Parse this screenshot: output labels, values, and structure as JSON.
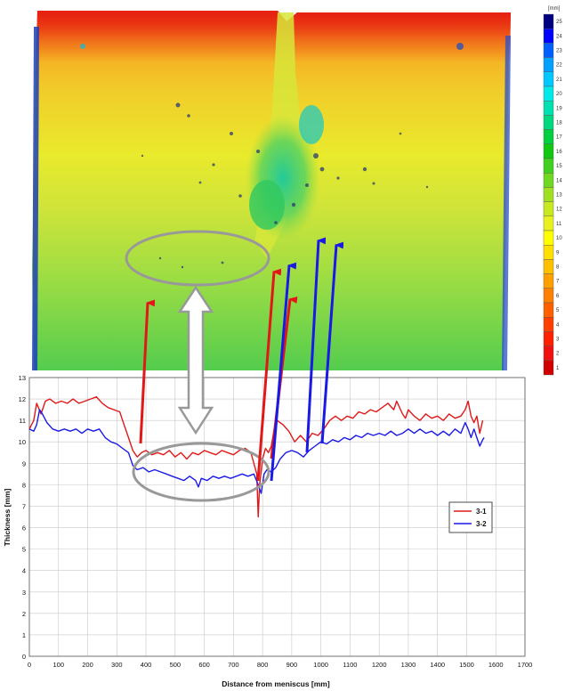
{
  "figure": {
    "thickness_map": {
      "colorbar_unit": "[mm]",
      "colorbar_ticks": [
        "25",
        "24",
        "23",
        "22",
        "21",
        "20",
        "19",
        "18",
        "17",
        "16",
        "15",
        "14",
        "13",
        "12",
        "11",
        "10",
        "9",
        "8",
        "7",
        "6",
        "5",
        "4",
        "3",
        "2",
        "1"
      ],
      "colorbar_colors": [
        "#000080",
        "#0000ff",
        "#0060ff",
        "#00a0ff",
        "#00c8ff",
        "#00e8e8",
        "#00e0b0",
        "#00d880",
        "#00d040",
        "#10c810",
        "#40d020",
        "#70d820",
        "#a0e020",
        "#c8e820",
        "#e8f020",
        "#ffff00",
        "#ffe000",
        "#ffc000",
        "#ffa000",
        "#ff8000",
        "#ff6000",
        "#ff4000",
        "#ff2000",
        "#f01010",
        "#d00000"
      ]
    },
    "annotation_colors": {
      "red_arrow": "#e01818",
      "blue_arrow": "#1a1ae6",
      "gray": "#999999"
    }
  },
  "chart_data": {
    "type": "line",
    "xlabel": "Distance from meniscus [mm]",
    "ylabel": "Thickness [mm]",
    "xlim": [
      0,
      1700
    ],
    "ylim": [
      0,
      13
    ],
    "xticks": [
      "0",
      "100",
      "200",
      "300",
      "400",
      "500",
      "600",
      "700",
      "800",
      "900",
      "1000",
      "1100",
      "1200",
      "1300",
      "1400",
      "1500",
      "1600",
      "1700"
    ],
    "yticks": [
      "0",
      "1",
      "2",
      "3",
      "4",
      "5",
      "6",
      "7",
      "8",
      "9",
      "10",
      "11",
      "12",
      "13"
    ],
    "grid": true,
    "legend_position": "right",
    "series": [
      {
        "name": "3-1",
        "color": "#e01818",
        "points": [
          [
            0,
            10.6
          ],
          [
            15,
            11.0
          ],
          [
            25,
            11.8
          ],
          [
            40,
            11.3
          ],
          [
            55,
            11.9
          ],
          [
            70,
            12.0
          ],
          [
            90,
            11.8
          ],
          [
            110,
            11.9
          ],
          [
            130,
            11.8
          ],
          [
            150,
            12.0
          ],
          [
            170,
            11.8
          ],
          [
            190,
            11.9
          ],
          [
            210,
            12.0
          ],
          [
            230,
            12.1
          ],
          [
            250,
            11.8
          ],
          [
            270,
            11.6
          ],
          [
            290,
            11.5
          ],
          [
            310,
            11.4
          ],
          [
            320,
            11.0
          ],
          [
            340,
            10.2
          ],
          [
            355,
            9.6
          ],
          [
            370,
            9.3
          ],
          [
            385,
            9.5
          ],
          [
            400,
            9.6
          ],
          [
            420,
            9.4
          ],
          [
            440,
            9.5
          ],
          [
            460,
            9.4
          ],
          [
            480,
            9.6
          ],
          [
            500,
            9.3
          ],
          [
            520,
            9.5
          ],
          [
            540,
            9.2
          ],
          [
            560,
            9.5
          ],
          [
            580,
            9.4
          ],
          [
            600,
            9.6
          ],
          [
            620,
            9.5
          ],
          [
            640,
            9.4
          ],
          [
            660,
            9.6
          ],
          [
            680,
            9.5
          ],
          [
            700,
            9.4
          ],
          [
            720,
            9.6
          ],
          [
            740,
            9.7
          ],
          [
            760,
            9.5
          ],
          [
            770,
            9.0
          ],
          [
            780,
            8.5
          ],
          [
            785,
            6.5
          ],
          [
            790,
            8.0
          ],
          [
            800,
            9.2
          ],
          [
            810,
            9.7
          ],
          [
            820,
            9.5
          ],
          [
            830,
            9.8
          ],
          [
            840,
            10.6
          ],
          [
            850,
            11.0
          ],
          [
            870,
            10.8
          ],
          [
            890,
            10.5
          ],
          [
            910,
            10.0
          ],
          [
            930,
            10.3
          ],
          [
            950,
            10.0
          ],
          [
            970,
            10.4
          ],
          [
            990,
            10.3
          ],
          [
            1010,
            10.6
          ],
          [
            1030,
            11.0
          ],
          [
            1050,
            11.2
          ],
          [
            1070,
            11.0
          ],
          [
            1090,
            11.2
          ],
          [
            1110,
            11.1
          ],
          [
            1130,
            11.4
          ],
          [
            1150,
            11.3
          ],
          [
            1170,
            11.5
          ],
          [
            1190,
            11.4
          ],
          [
            1210,
            11.6
          ],
          [
            1230,
            11.8
          ],
          [
            1250,
            11.5
          ],
          [
            1260,
            11.9
          ],
          [
            1280,
            11.3
          ],
          [
            1290,
            11.1
          ],
          [
            1300,
            11.5
          ],
          [
            1320,
            11.2
          ],
          [
            1340,
            11.0
          ],
          [
            1360,
            11.3
          ],
          [
            1380,
            11.1
          ],
          [
            1400,
            11.2
          ],
          [
            1420,
            11.0
          ],
          [
            1440,
            11.3
          ],
          [
            1460,
            11.1
          ],
          [
            1480,
            11.2
          ],
          [
            1495,
            11.5
          ],
          [
            1505,
            11.9
          ],
          [
            1515,
            11.2
          ],
          [
            1525,
            10.9
          ],
          [
            1535,
            11.2
          ],
          [
            1545,
            10.4
          ],
          [
            1555,
            11.0
          ]
        ]
      },
      {
        "name": "3-2",
        "color": "#1a1ae6",
        "points": [
          [
            0,
            10.6
          ],
          [
            15,
            10.5
          ],
          [
            25,
            10.8
          ],
          [
            35,
            11.5
          ],
          [
            45,
            11.3
          ],
          [
            60,
            10.9
          ],
          [
            80,
            10.6
          ],
          [
            100,
            10.5
          ],
          [
            120,
            10.6
          ],
          [
            140,
            10.5
          ],
          [
            160,
            10.6
          ],
          [
            180,
            10.4
          ],
          [
            200,
            10.6
          ],
          [
            220,
            10.5
          ],
          [
            240,
            10.6
          ],
          [
            260,
            10.2
          ],
          [
            280,
            10.0
          ],
          [
            300,
            9.9
          ],
          [
            320,
            9.7
          ],
          [
            340,
            9.5
          ],
          [
            355,
            8.9
          ],
          [
            370,
            8.7
          ],
          [
            390,
            8.8
          ],
          [
            410,
            8.6
          ],
          [
            430,
            8.7
          ],
          [
            450,
            8.6
          ],
          [
            470,
            8.5
          ],
          [
            490,
            8.4
          ],
          [
            510,
            8.3
          ],
          [
            530,
            8.2
          ],
          [
            550,
            8.4
          ],
          [
            570,
            8.2
          ],
          [
            580,
            7.9
          ],
          [
            590,
            8.3
          ],
          [
            610,
            8.2
          ],
          [
            630,
            8.4
          ],
          [
            650,
            8.3
          ],
          [
            670,
            8.4
          ],
          [
            690,
            8.3
          ],
          [
            710,
            8.4
          ],
          [
            730,
            8.5
          ],
          [
            750,
            8.4
          ],
          [
            770,
            8.5
          ],
          [
            785,
            8.0
          ],
          [
            795,
            7.6
          ],
          [
            805,
            8.5
          ],
          [
            815,
            8.7
          ],
          [
            830,
            8.6
          ],
          [
            845,
            8.8
          ],
          [
            860,
            9.2
          ],
          [
            880,
            9.5
          ],
          [
            900,
            9.6
          ],
          [
            920,
            9.5
          ],
          [
            940,
            9.3
          ],
          [
            960,
            9.6
          ],
          [
            980,
            9.8
          ],
          [
            1000,
            10.0
          ],
          [
            1020,
            9.9
          ],
          [
            1040,
            10.1
          ],
          [
            1060,
            10.0
          ],
          [
            1080,
            10.2
          ],
          [
            1100,
            10.1
          ],
          [
            1120,
            10.3
          ],
          [
            1140,
            10.2
          ],
          [
            1160,
            10.4
          ],
          [
            1180,
            10.3
          ],
          [
            1200,
            10.4
          ],
          [
            1220,
            10.3
          ],
          [
            1240,
            10.5
          ],
          [
            1260,
            10.3
          ],
          [
            1280,
            10.4
          ],
          [
            1300,
            10.6
          ],
          [
            1320,
            10.4
          ],
          [
            1340,
            10.6
          ],
          [
            1360,
            10.4
          ],
          [
            1380,
            10.5
          ],
          [
            1400,
            10.3
          ],
          [
            1420,
            10.5
          ],
          [
            1440,
            10.3
          ],
          [
            1460,
            10.6
          ],
          [
            1480,
            10.4
          ],
          [
            1495,
            10.9
          ],
          [
            1505,
            10.6
          ],
          [
            1515,
            10.2
          ],
          [
            1525,
            10.6
          ],
          [
            1535,
            10.2
          ],
          [
            1545,
            9.8
          ],
          [
            1555,
            10.1
          ],
          [
            1560,
            10.2
          ]
        ]
      }
    ]
  }
}
